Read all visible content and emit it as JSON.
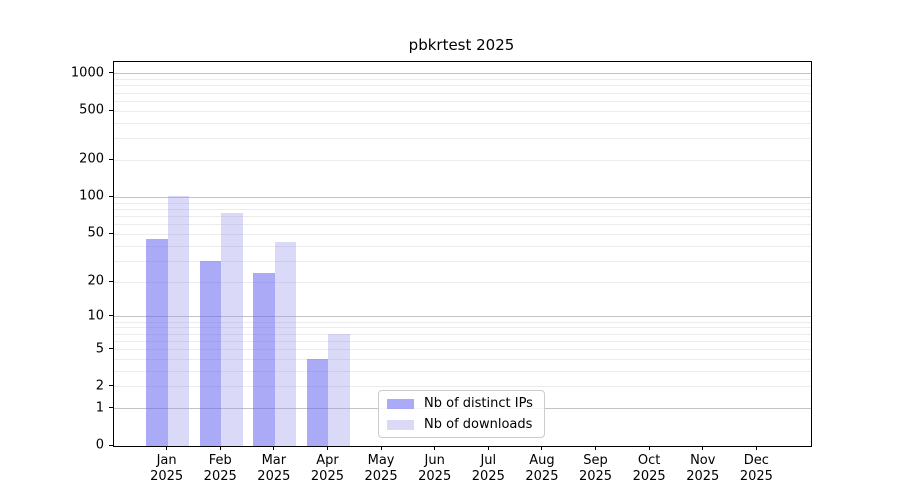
{
  "figure": {
    "background": "#ffffff"
  },
  "chart_data": {
    "type": "bar",
    "title": "pbkrtest 2025",
    "categories": [
      "Jan",
      "Feb",
      "Mar",
      "Apr",
      "May",
      "Jun",
      "Jul",
      "Aug",
      "Sep",
      "Oct",
      "Nov",
      "Dec"
    ],
    "category_year": "2025",
    "series": [
      {
        "name": "Nb of distinct IPs",
        "values": [
          46,
          30,
          24,
          4,
          null,
          null,
          null,
          null,
          null,
          null,
          null,
          null
        ],
        "fill": "rgba(100, 100, 238, 0.55)",
        "approx_hex": "#a8a8f5"
      },
      {
        "name": "Nb of downloads",
        "values": [
          103,
          75,
          43,
          7,
          null,
          null,
          null,
          null,
          null,
          null,
          null,
          null
        ],
        "fill": "rgba(150, 150, 235, 0.35)",
        "approx_hex": "#dadaf8"
      }
    ],
    "y_ticks": [
      0,
      1,
      2,
      5,
      10,
      20,
      50,
      100,
      200,
      500,
      1000
    ],
    "y_scale": "log10(1+y)",
    "ylim": [
      0,
      1249
    ],
    "xlabel": "",
    "ylabel": "",
    "grid": true,
    "grid_minor_values": [
      2,
      3,
      4,
      5,
      6,
      7,
      8,
      9,
      20,
      30,
      40,
      50,
      60,
      70,
      80,
      90,
      200,
      300,
      400,
      500,
      600,
      700,
      800,
      900
    ],
    "grid_major_values": [
      1,
      10,
      100,
      1000
    ],
    "grid_minor_color": "#ececec",
    "grid_major_color": "#c3c3c3",
    "legend_position": "lower center"
  }
}
